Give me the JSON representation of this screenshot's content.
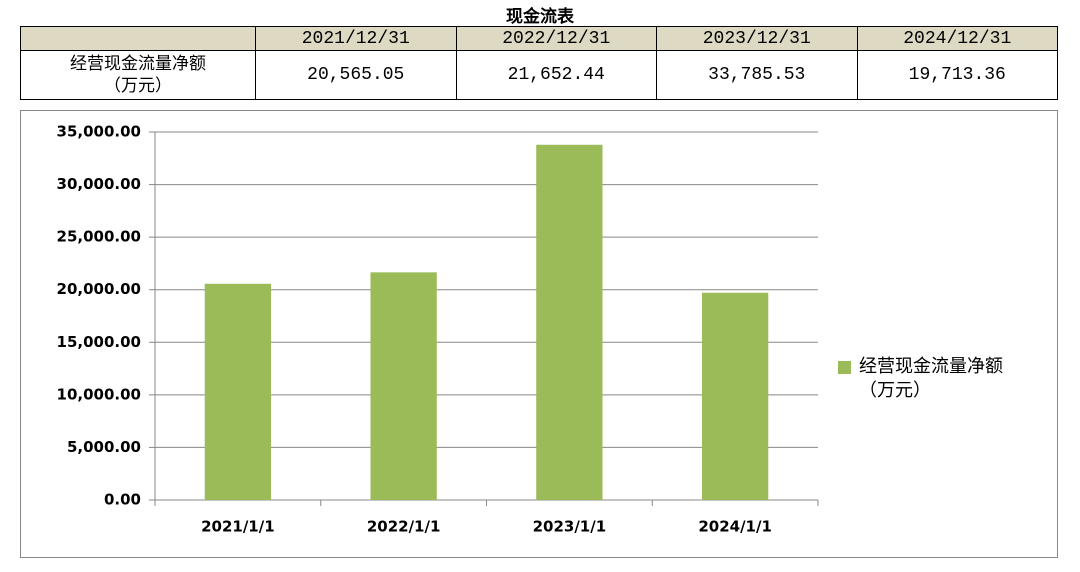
{
  "title": "现金流表",
  "table": {
    "header": [
      "2021/12/31",
      "2022/12/31",
      "2023/12/31",
      "2024/12/31"
    ],
    "rows": [
      [
        "经营现金流量净额\n（万元）",
        "20,565.05",
        "21,652.44",
        "33,785.53",
        "19,713.36"
      ]
    ]
  },
  "chart_data": {
    "type": "bar",
    "categories": [
      "2021/1/1",
      "2022/1/1",
      "2023/1/1",
      "2024/1/1"
    ],
    "series": [
      {
        "name": "经营现金流量净额\n（万元）",
        "color": "#9bbb59",
        "values": [
          20565.05,
          21652.44,
          33785.53,
          19713.36
        ]
      }
    ],
    "ylim": [
      0,
      35000
    ],
    "yticks": [
      {
        "value": 0,
        "label": "0.00"
      },
      {
        "value": 5000,
        "label": "5,000.00"
      },
      {
        "value": 10000,
        "label": "10,000.00"
      },
      {
        "value": 15000,
        "label": "15,000.00"
      },
      {
        "value": 20000,
        "label": "20,000.00"
      },
      {
        "value": 25000,
        "label": "25,000.00"
      },
      {
        "value": 30000,
        "label": "30,000.00"
      },
      {
        "value": 35000,
        "label": "35,000.00"
      }
    ],
    "grid": true,
    "legend": "right"
  }
}
